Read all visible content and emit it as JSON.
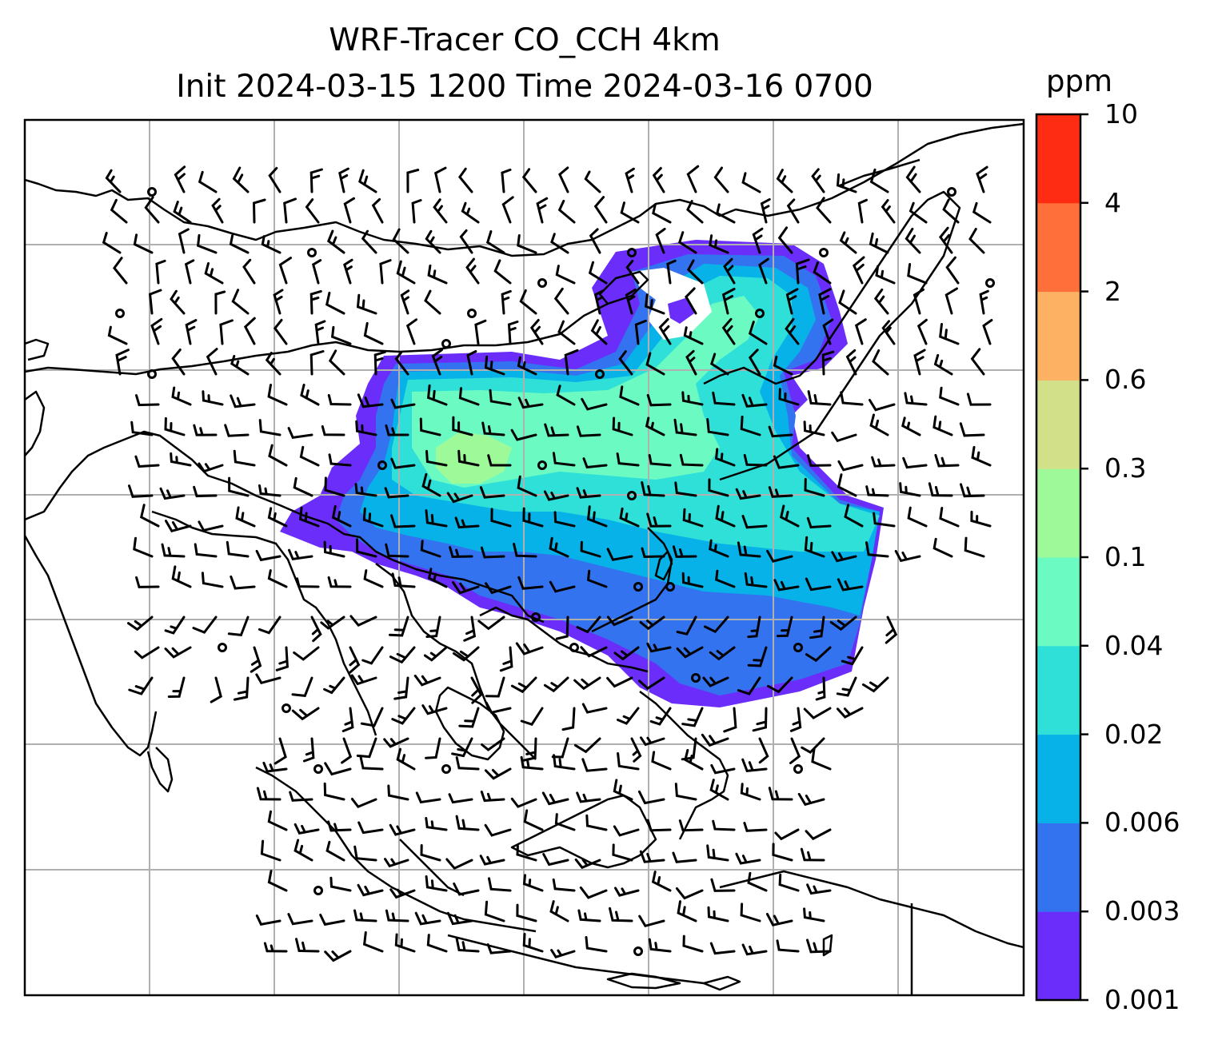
{
  "title": {
    "line1": "WRF-Tracer CO_CCH 4km",
    "line2": "Init 2024-03-15 1200 Time 2024-03-16 0700"
  },
  "colorbar": {
    "unit": "ppm",
    "levels": [
      {
        "label": "0.001",
        "color": "#6a2dfa"
      },
      {
        "label": "0.003",
        "color": "#3373f0"
      },
      {
        "label": "0.006",
        "color": "#07b2e8"
      },
      {
        "label": "0.02",
        "color": "#2ee0d8"
      },
      {
        "label": "0.04",
        "color": "#6cfac3"
      },
      {
        "label": "0.1",
        "color": "#9efa99"
      },
      {
        "label": "0.3",
        "color": "#d3e08a"
      },
      {
        "label": "0.6",
        "color": "#fdb163"
      },
      {
        "label": "2",
        "color": "#ff6f3a"
      },
      {
        "label": "4",
        "color": "#ff2c14"
      },
      {
        "label": "10",
        "color": null
      }
    ]
  },
  "map": {
    "gridlines": true,
    "coastlines": true,
    "wind_barbs": true,
    "tracer_plume_colors": [
      "#6a2dfa",
      "#3373f0",
      "#07b2e8",
      "#2ee0d8",
      "#6cfac3",
      "#9efa99"
    ]
  }
}
